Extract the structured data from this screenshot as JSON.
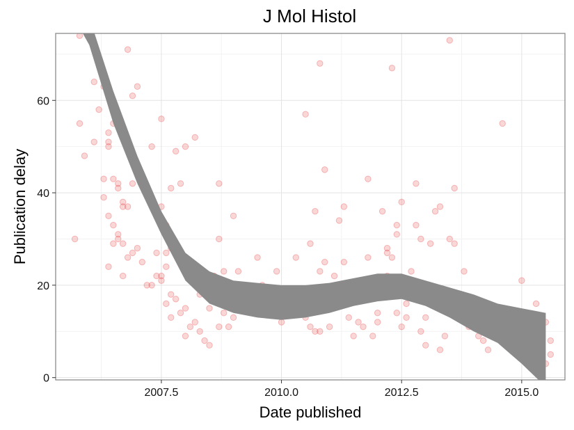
{
  "chart_data": {
    "type": "scatter",
    "title": "J Mol Histol",
    "xlabel": "Date published",
    "ylabel": "Publication delay",
    "xlim": [
      2005.3,
      2015.9
    ],
    "ylim": [
      -0.5,
      74.5
    ],
    "x_ticks": [
      2007.5,
      2010.0,
      2012.5,
      2015.0
    ],
    "x_tick_labels": [
      "2007.5",
      "2010.0",
      "2012.5",
      "2015.0"
    ],
    "y_ticks": [
      0,
      20,
      40,
      60
    ],
    "y_tick_labels": [
      "0",
      "20",
      "40",
      "60"
    ],
    "grid": true,
    "point_color": "#e8474b",
    "band_color": "#8a8a8a",
    "points": [
      [
        2005.8,
        74
      ],
      [
        2005.8,
        55
      ],
      [
        2005.9,
        48
      ],
      [
        2005.7,
        30
      ],
      [
        2006.1,
        64
      ],
      [
        2006.2,
        58
      ],
      [
        2006.3,
        63
      ],
      [
        2006.1,
        51
      ],
      [
        2006.4,
        53
      ],
      [
        2006.4,
        51
      ],
      [
        2006.5,
        55
      ],
      [
        2006.4,
        50
      ],
      [
        2006.3,
        43
      ],
      [
        2006.5,
        43
      ],
      [
        2006.6,
        42
      ],
      [
        2006.6,
        41
      ],
      [
        2006.3,
        39
      ],
      [
        2006.4,
        35
      ],
      [
        2006.5,
        33
      ],
      [
        2006.6,
        30
      ],
      [
        2006.7,
        29
      ],
      [
        2006.7,
        38
      ],
      [
        2006.8,
        37
      ],
      [
        2006.7,
        37
      ],
      [
        2006.8,
        71
      ],
      [
        2006.9,
        61
      ],
      [
        2007.0,
        63
      ],
      [
        2006.9,
        42
      ],
      [
        2006.7,
        54
      ],
      [
        2006.5,
        29
      ],
      [
        2006.6,
        31
      ],
      [
        2006.4,
        24
      ],
      [
        2006.7,
        22
      ],
      [
        2006.8,
        26
      ],
      [
        2006.9,
        27
      ],
      [
        2007.0,
        28
      ],
      [
        2007.1,
        25
      ],
      [
        2007.2,
        20
      ],
      [
        2007.3,
        20
      ],
      [
        2007.3,
        50
      ],
      [
        2007.4,
        27
      ],
      [
        2007.5,
        22
      ],
      [
        2007.6,
        27
      ],
      [
        2007.4,
        22
      ],
      [
        2007.5,
        21
      ],
      [
        2007.6,
        24
      ],
      [
        2007.7,
        41
      ],
      [
        2007.5,
        56
      ],
      [
        2007.8,
        49
      ],
      [
        2007.9,
        42
      ],
      [
        2007.5,
        37
      ],
      [
        2007.6,
        33
      ],
      [
        2007.7,
        28
      ],
      [
        2007.8,
        28
      ],
      [
        2007.9,
        25
      ],
      [
        2008.0,
        50
      ],
      [
        2007.7,
        18
      ],
      [
        2007.8,
        17
      ],
      [
        2007.6,
        16
      ],
      [
        2007.7,
        13
      ],
      [
        2007.9,
        14
      ],
      [
        2008.0,
        15
      ],
      [
        2008.1,
        11
      ],
      [
        2008.2,
        52
      ],
      [
        2008.0,
        9
      ],
      [
        2008.3,
        10
      ],
      [
        2008.2,
        12
      ],
      [
        2008.4,
        8
      ],
      [
        2008.5,
        7
      ],
      [
        2008.3,
        18
      ],
      [
        2008.5,
        15
      ],
      [
        2008.6,
        22
      ],
      [
        2008.7,
        42
      ],
      [
        2008.7,
        30
      ],
      [
        2008.6,
        20
      ],
      [
        2008.8,
        23
      ],
      [
        2008.9,
        17
      ],
      [
        2008.8,
        14
      ],
      [
        2008.7,
        11
      ],
      [
        2008.9,
        11
      ],
      [
        2009.0,
        35
      ],
      [
        2009.1,
        23
      ],
      [
        2009.1,
        15
      ],
      [
        2009.0,
        13
      ],
      [
        2009.2,
        16
      ],
      [
        2009.3,
        17
      ],
      [
        2009.4,
        14
      ],
      [
        2009.5,
        26
      ],
      [
        2009.6,
        20
      ],
      [
        2009.7,
        15
      ],
      [
        2009.8,
        14
      ],
      [
        2009.9,
        18
      ],
      [
        2009.9,
        23
      ],
      [
        2010.0,
        12
      ],
      [
        2010.1,
        16
      ],
      [
        2010.2,
        17
      ],
      [
        2010.3,
        26
      ],
      [
        2010.4,
        19
      ],
      [
        2010.5,
        57
      ],
      [
        2010.6,
        29
      ],
      [
        2010.5,
        13
      ],
      [
        2010.6,
        11
      ],
      [
        2010.7,
        36
      ],
      [
        2010.7,
        10
      ],
      [
        2010.8,
        23
      ],
      [
        2010.8,
        68
      ],
      [
        2010.9,
        45
      ],
      [
        2010.9,
        25
      ],
      [
        2010.8,
        10
      ],
      [
        2011.0,
        15
      ],
      [
        2011.0,
        11
      ],
      [
        2011.1,
        22
      ],
      [
        2011.2,
        34
      ],
      [
        2011.3,
        25
      ],
      [
        2011.3,
        37
      ],
      [
        2011.4,
        18
      ],
      [
        2011.4,
        13
      ],
      [
        2011.5,
        9
      ],
      [
        2011.6,
        12
      ],
      [
        2011.7,
        11
      ],
      [
        2011.8,
        43
      ],
      [
        2011.8,
        26
      ],
      [
        2011.9,
        18
      ],
      [
        2011.9,
        9
      ],
      [
        2012.0,
        14
      ],
      [
        2012.0,
        12
      ],
      [
        2012.1,
        36
      ],
      [
        2012.2,
        28
      ],
      [
        2012.2,
        27
      ],
      [
        2012.2,
        22
      ],
      [
        2012.3,
        18
      ],
      [
        2012.3,
        67
      ],
      [
        2012.3,
        26
      ],
      [
        2012.4,
        33
      ],
      [
        2012.4,
        31
      ],
      [
        2012.5,
        38
      ],
      [
        2012.4,
        14
      ],
      [
        2012.5,
        11
      ],
      [
        2012.6,
        16
      ],
      [
        2012.6,
        13
      ],
      [
        2012.7,
        23
      ],
      [
        2012.8,
        42
      ],
      [
        2012.8,
        33
      ],
      [
        2012.9,
        30
      ],
      [
        2012.9,
        10
      ],
      [
        2013.0,
        7
      ],
      [
        2013.0,
        13
      ],
      [
        2013.1,
        29
      ],
      [
        2013.2,
        36
      ],
      [
        2013.3,
        37
      ],
      [
        2013.3,
        6
      ],
      [
        2013.4,
        9
      ],
      [
        2013.5,
        73
      ],
      [
        2013.5,
        30
      ],
      [
        2013.6,
        41
      ],
      [
        2013.6,
        29
      ],
      [
        2013.7,
        18
      ],
      [
        2013.8,
        23
      ],
      [
        2013.8,
        15
      ],
      [
        2013.9,
        11
      ],
      [
        2014.0,
        12
      ],
      [
        2014.1,
        9
      ],
      [
        2014.2,
        16
      ],
      [
        2014.2,
        8
      ],
      [
        2014.3,
        6
      ],
      [
        2014.4,
        12
      ],
      [
        2014.5,
        10
      ],
      [
        2014.6,
        55
      ],
      [
        2014.7,
        13
      ],
      [
        2014.7,
        7
      ],
      [
        2014.8,
        9
      ],
      [
        2014.9,
        5
      ],
      [
        2015.0,
        21
      ],
      [
        2015.0,
        8
      ],
      [
        2015.1,
        11
      ],
      [
        2015.2,
        7
      ],
      [
        2015.2,
        4
      ],
      [
        2015.3,
        16
      ],
      [
        2015.4,
        6
      ],
      [
        2015.5,
        12
      ],
      [
        2015.5,
        3
      ],
      [
        2015.6,
        8
      ],
      [
        2015.6,
        5
      ],
      [
        2015.4,
        10
      ]
    ],
    "band": {
      "x": [
        2005.3,
        2006.0,
        2006.5,
        2007.0,
        2007.5,
        2008.0,
        2008.5,
        2009.0,
        2009.5,
        2010.0,
        2010.5,
        2011.0,
        2011.5,
        2012.0,
        2012.5,
        2013.0,
        2013.5,
        2014.0,
        2014.5,
        2015.0,
        2015.5
      ],
      "upper": [
        85,
        78,
        62,
        48,
        36,
        27,
        23,
        21,
        20.5,
        20,
        20,
        20.5,
        21.5,
        22.5,
        22.5,
        21,
        19.5,
        18,
        16,
        15,
        14
      ],
      "lower": [
        85,
        72,
        55,
        42,
        31,
        21,
        16,
        14,
        13,
        12.5,
        13,
        14,
        15.5,
        16.5,
        17,
        15.5,
        13,
        10,
        7.5,
        3,
        -2
      ]
    }
  }
}
